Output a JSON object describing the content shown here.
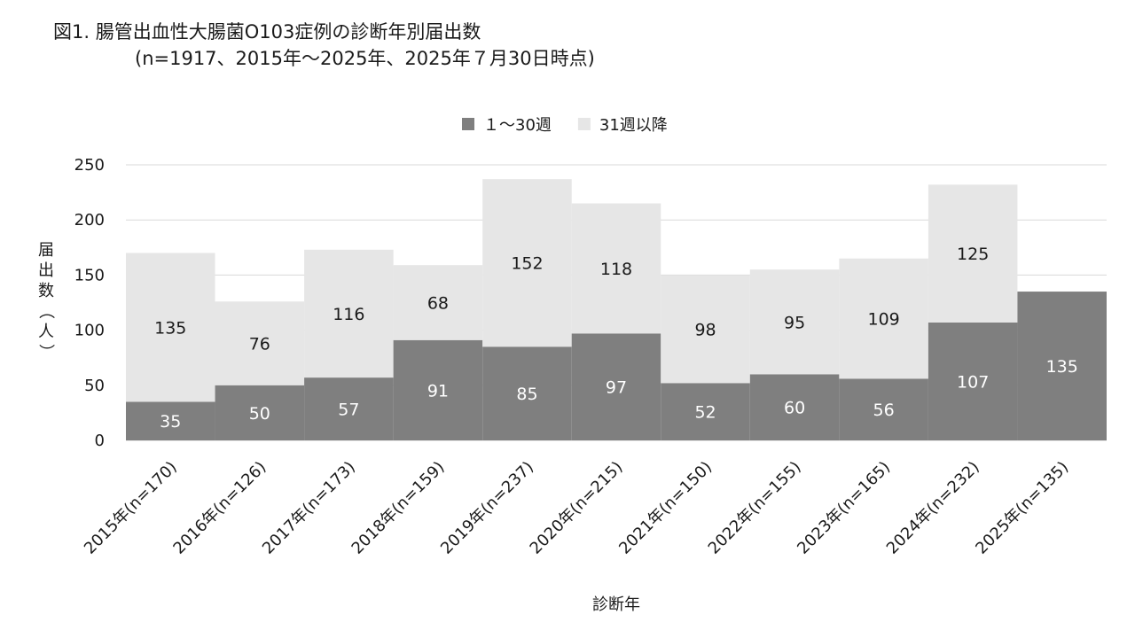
{
  "chart_data": {
    "type": "bar",
    "stacked": true,
    "title": "図1. 腸管出血性大腸菌O103症例の診断年別届出数",
    "subtitle": "(n=1917、2015年～2025年、2025年７月30日時点)",
    "xlabel": "診断年",
    "ylabel": "届出数（人）",
    "ylim": [
      0,
      250
    ],
    "yticks": [
      0,
      50,
      100,
      150,
      200,
      250
    ],
    "grid": true,
    "legend_position": "top",
    "categories": [
      "2015年(n=170)",
      "2016年(n=126)",
      "2017年(n=173)",
      "2018年(n=159)",
      "2019年(n=237)",
      "2020年(n=215)",
      "2021年(n=150)",
      "2022年(n=155)",
      "2023年(n=165)",
      "2024年(n=232)",
      "2025年(n=135)"
    ],
    "series": [
      {
        "name": "１～30週",
        "color": "#7f7f7f",
        "label_color": "#ffffff",
        "values": [
          35,
          50,
          57,
          91,
          85,
          97,
          52,
          60,
          56,
          107,
          135
        ]
      },
      {
        "name": "31週以降",
        "color": "#e6e6e6",
        "label_color": "#1a1a1a",
        "values": [
          135,
          76,
          116,
          68,
          152,
          118,
          98,
          95,
          109,
          125,
          0
        ]
      }
    ]
  }
}
